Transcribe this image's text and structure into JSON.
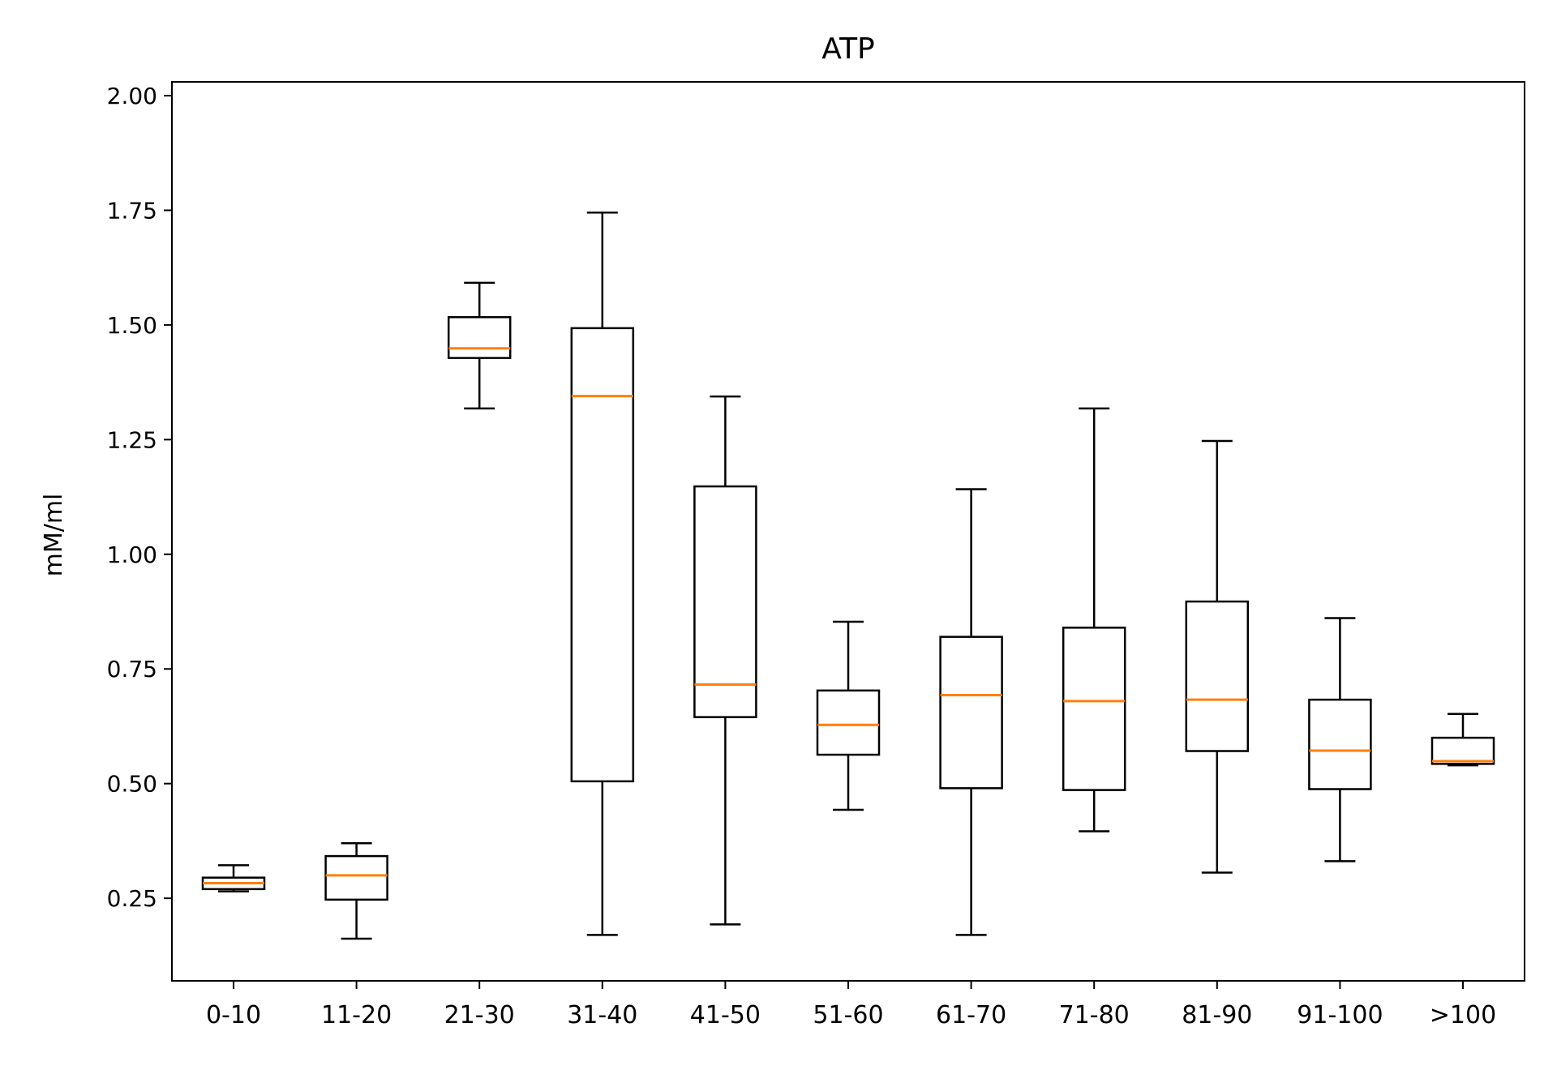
{
  "chart_data": {
    "type": "boxplot",
    "title": "ATP",
    "xlabel": "",
    "ylabel": "mM/ml",
    "ylim": [
      0.07,
      2.03
    ],
    "y_ticks": [
      0.25,
      0.5,
      0.75,
      1.0,
      1.25,
      1.5,
      1.75,
      2.0
    ],
    "y_tick_labels": [
      "0.25",
      "0.50",
      "0.75",
      "1.00",
      "1.25",
      "1.50",
      "1.75",
      "2.00"
    ],
    "grid": false,
    "categories": [
      "0-10",
      "11-20",
      "21-30",
      "31-40",
      "41-50",
      "51-60",
      "61-70",
      "71-80",
      "81-90",
      "91-100",
      ">100"
    ],
    "boxes": [
      {
        "whisker_low": 0.265,
        "q1": 0.27,
        "median": 0.283,
        "q3": 0.295,
        "whisker_high": 0.322
      },
      {
        "whisker_low": 0.162,
        "q1": 0.247,
        "median": 0.3,
        "q3": 0.342,
        "whisker_high": 0.37
      },
      {
        "whisker_low": 1.318,
        "q1": 1.428,
        "median": 1.449,
        "q3": 1.517,
        "whisker_high": 1.592
      },
      {
        "whisker_low": 0.17,
        "q1": 0.505,
        "median": 1.345,
        "q3": 1.493,
        "whisker_high": 1.745
      },
      {
        "whisker_low": 0.193,
        "q1": 0.645,
        "median": 0.716,
        "q3": 1.148,
        "whisker_high": 1.344
      },
      {
        "whisker_low": 0.443,
        "q1": 0.563,
        "median": 0.628,
        "q3": 0.703,
        "whisker_high": 0.853
      },
      {
        "whisker_low": 0.17,
        "q1": 0.49,
        "median": 0.693,
        "q3": 0.82,
        "whisker_high": 1.142
      },
      {
        "whisker_low": 0.396,
        "q1": 0.486,
        "median": 0.68,
        "q3": 0.84,
        "whisker_high": 1.318
      },
      {
        "whisker_low": 0.306,
        "q1": 0.571,
        "median": 0.683,
        "q3": 0.897,
        "whisker_high": 1.247
      },
      {
        "whisker_low": 0.331,
        "q1": 0.488,
        "median": 0.572,
        "q3": 0.683,
        "whisker_high": 0.861
      },
      {
        "whisker_low": 0.54,
        "q1": 0.543,
        "median": 0.549,
        "q3": 0.6,
        "whisker_high": 0.652
      }
    ],
    "colors": {
      "box": "#000000",
      "median": "#ff7f0e",
      "whisker": "#000000"
    }
  }
}
